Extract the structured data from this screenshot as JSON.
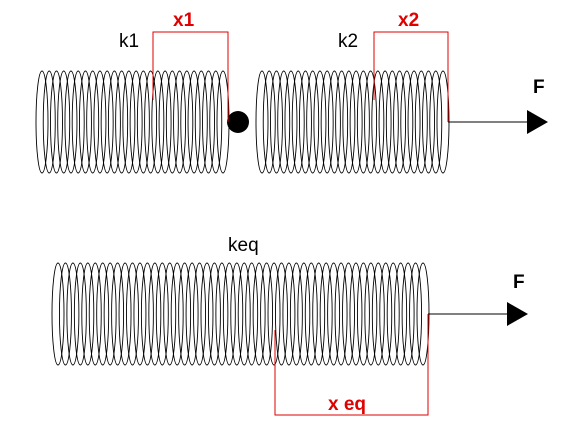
{
  "top_row": {
    "spring1": {
      "label": "k1",
      "coils": 26
    },
    "spring2": {
      "label": "k2",
      "coils": 26
    },
    "displacement1_label": "x1",
    "displacement2_label": "x2",
    "force_label": "F"
  },
  "bottom_row": {
    "spring": {
      "label": "keq",
      "coils": 50
    },
    "displacement_label": "x eq",
    "force_label": "F"
  },
  "colors": {
    "spring": "#000000",
    "text": "#000000",
    "displacement": "#e00000",
    "mass": "#000000"
  }
}
